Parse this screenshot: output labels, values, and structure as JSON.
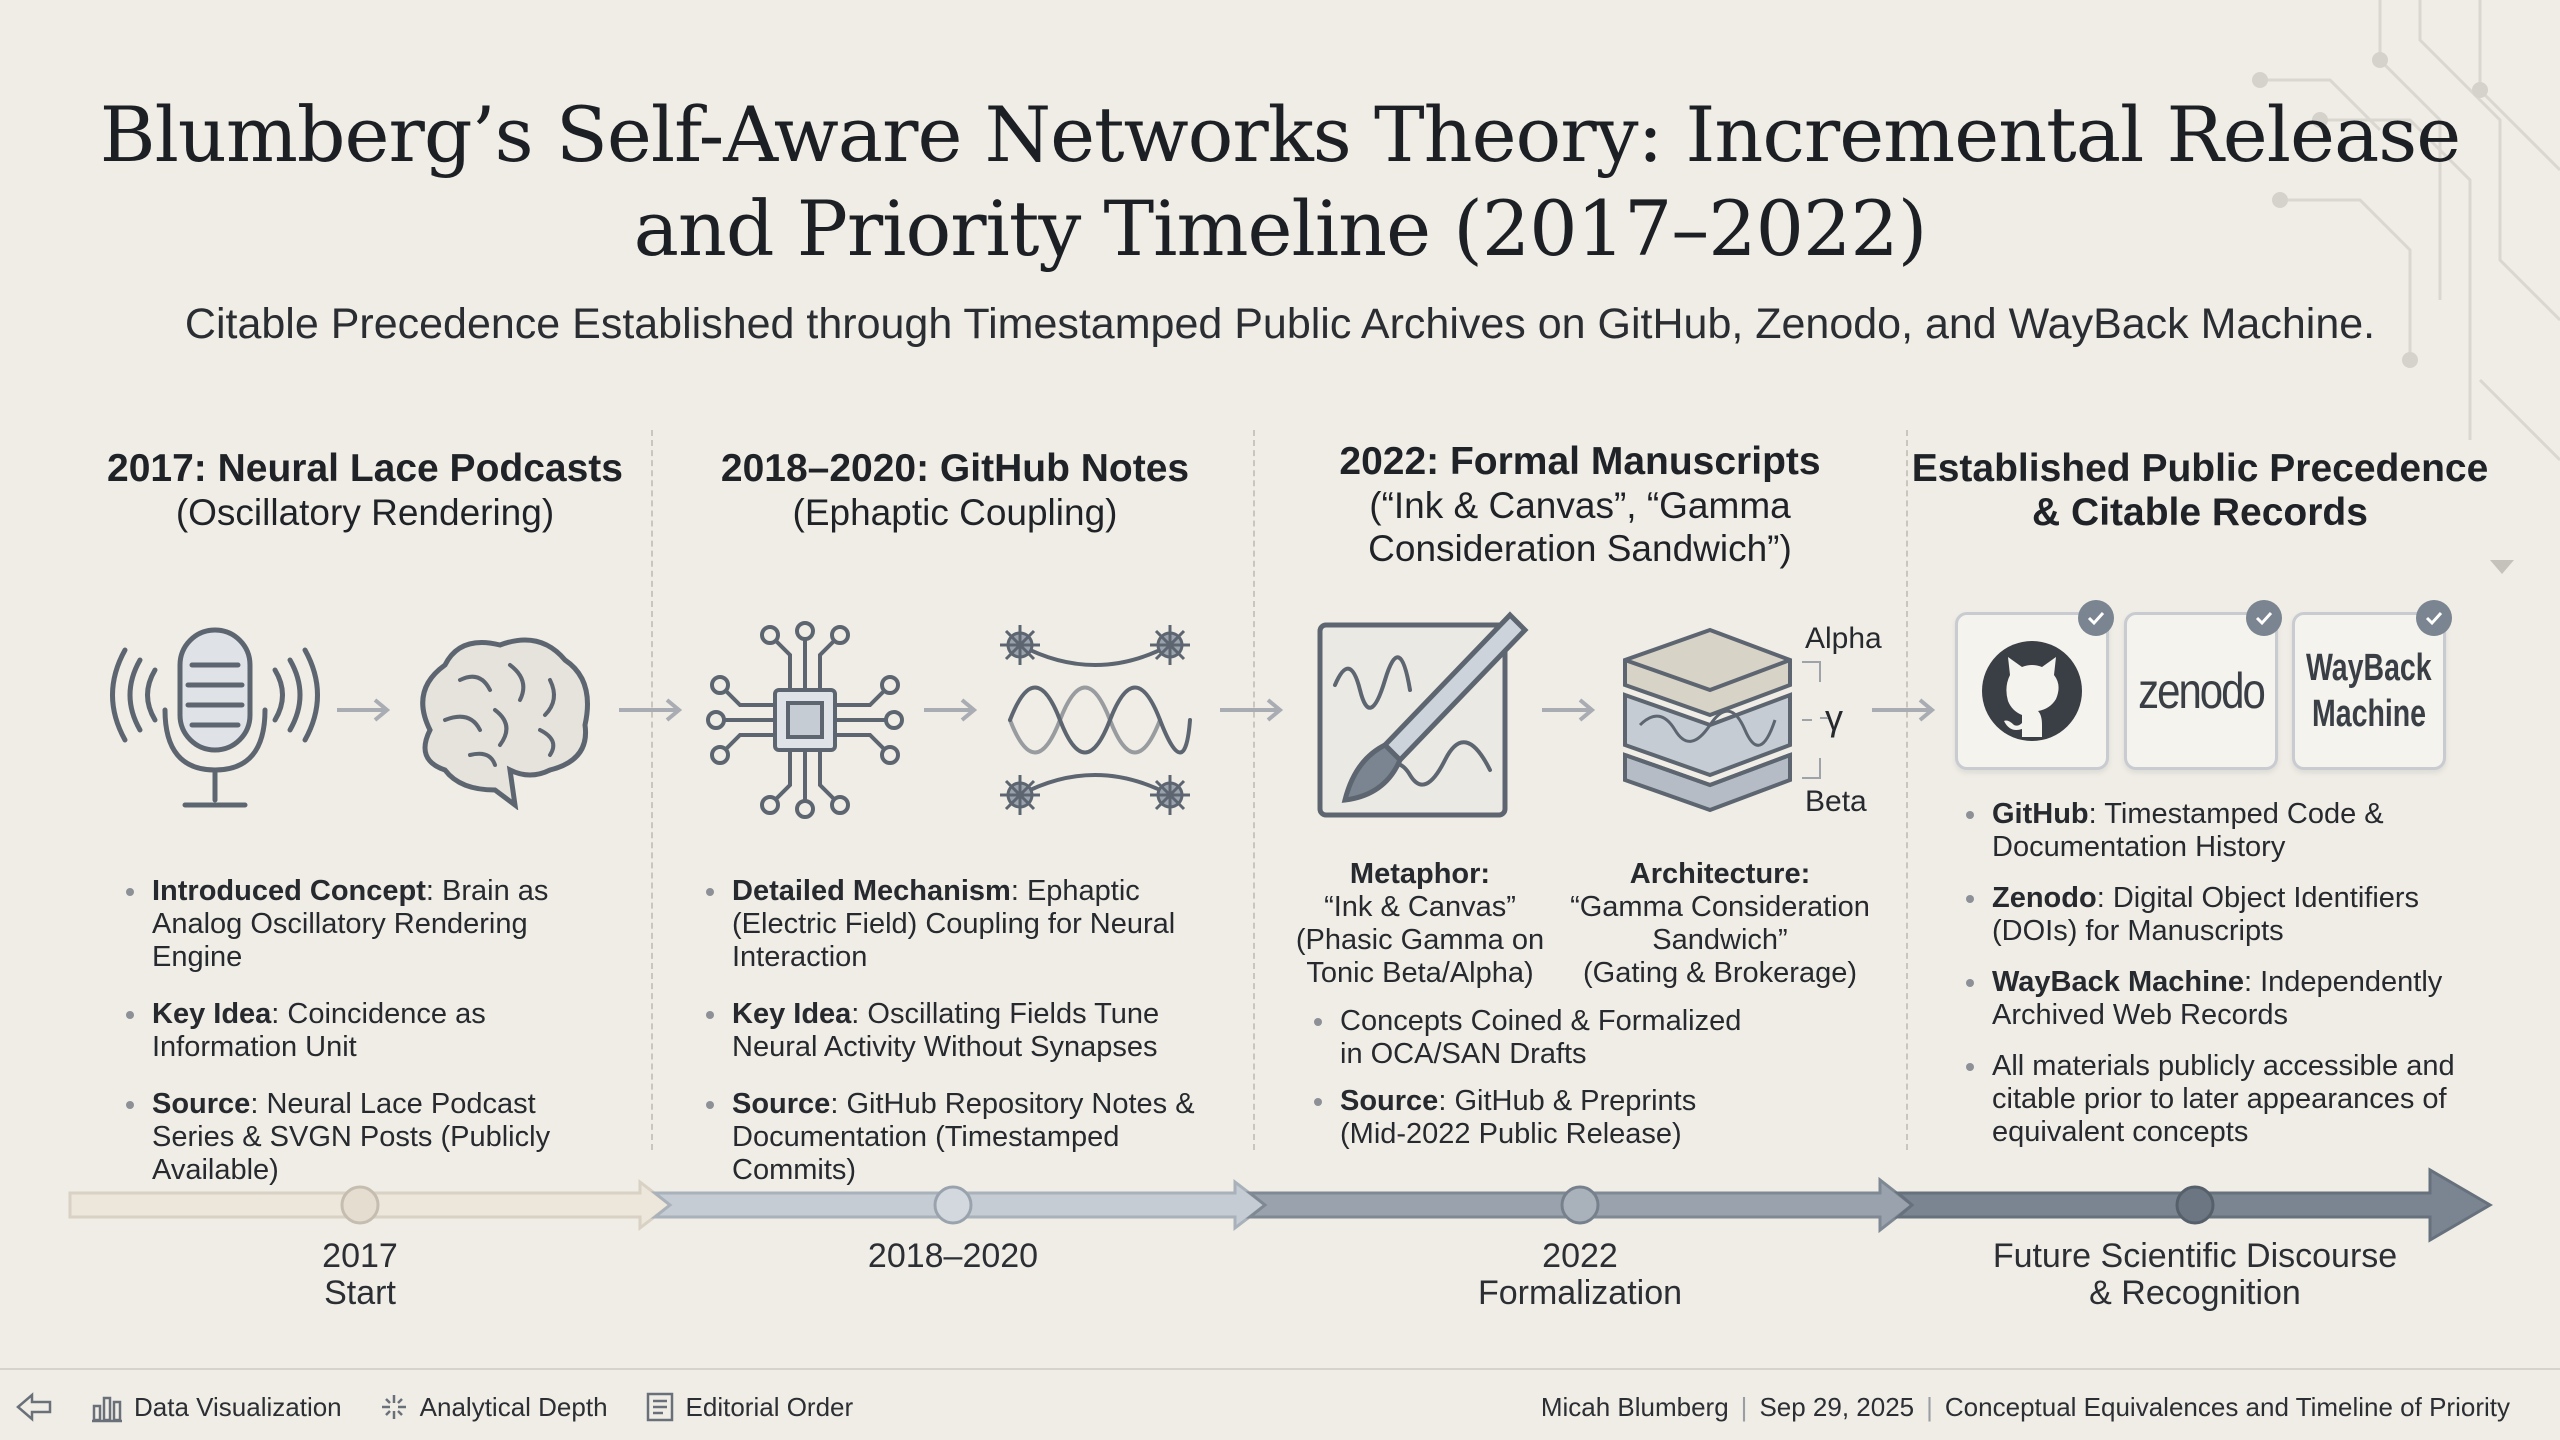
{
  "header": {
    "title_line1": "Blumberg’s Self-Aware Networks Theory: Incremental Release",
    "title_line2": "and Priority Timeline (2017–2022)",
    "subtitle": "Citable Precedence Established through Timestamped Public Archives on GitHub, Zenodo, and WayBack Machine."
  },
  "columns": [
    {
      "heading": "2017: Neural Lace Podcasts",
      "subheading": "(Oscillatory Rendering)",
      "icons": [
        "microphone-icon",
        "brain-icon"
      ],
      "bullets": [
        {
          "bold": "Introduced Concept",
          "text": ": Brain as Analog Oscillatory Rendering Engine"
        },
        {
          "bold": "Key Idea",
          "text": ": Coincidence as Information Unit"
        },
        {
          "bold": "Source",
          "text": ": Neural Lace Podcast Series & SVGN Posts (Publicly Available)"
        }
      ]
    },
    {
      "heading": "2018–2020: GitHub Notes",
      "subheading": "(Ephaptic Coupling)",
      "icons": [
        "circuit-chip-icon",
        "oscillating-neurons-icon"
      ],
      "bullets": [
        {
          "bold": "Detailed Mechanism",
          "text": ": Ephaptic (Electric Field) Coupling for Neural Interaction"
        },
        {
          "bold": "Key Idea",
          "text": ": Oscillating Fields Tune Neural Activity Without Synapses"
        },
        {
          "bold": "Source",
          "text": ": GitHub Repository Notes & Documentation (Timestamped Commits)"
        }
      ]
    },
    {
      "heading": "2022: Formal Manuscripts",
      "subheading_line1": "(“Ink & Canvas”, “Gamma",
      "subheading_line2": "Consideration Sandwich”)",
      "icons": [
        "canvas-brush-icon",
        "layered-sandwich-icon"
      ],
      "sandwich_labels": {
        "top": "Alpha",
        "middle": "γ",
        "bottom": "Beta"
      },
      "captions": [
        {
          "bold": "Metaphor:",
          "lines": [
            "“Ink & Canvas”",
            "(Phasic Gamma on",
            "Tonic Beta/Alpha)"
          ]
        },
        {
          "bold": "Architecture:",
          "lines": [
            "“Gamma Consideration",
            "Sandwich”",
            "(Gating & Brokerage)"
          ]
        }
      ],
      "bullets": [
        {
          "bold": "",
          "text": "Concepts Coined & Formalized in OCA/SAN Drafts"
        },
        {
          "bold": "Source",
          "text": ": GitHub & Preprints (Mid-2022 Public Release)"
        }
      ]
    },
    {
      "heading_line1": "Established Public Precedence",
      "heading_line2": "& Citable Records",
      "logos": [
        {
          "name": "github-logo",
          "text": ""
        },
        {
          "name": "zenodo-logo",
          "text": "zenodo"
        },
        {
          "name": "wayback-machine-logo",
          "text_line1": "WayBack",
          "text_line2": "Machine"
        }
      ],
      "bullets": [
        {
          "bold": "GitHub",
          "text": ": Timestamped Code & Documentation History"
        },
        {
          "bold": "Zenodo",
          "text": ": Digital Object Identifiers (DOIs) for Manuscripts"
        },
        {
          "bold": "WayBack Machine",
          "text": ": Independently Archived Web Records"
        },
        {
          "bold": "",
          "text": "All materials publicly accessible and citable prior to later appearances of equivalent concepts"
        }
      ]
    }
  ],
  "timeline": [
    {
      "line1": "2017",
      "line2": "Start"
    },
    {
      "line1": "2018–2020",
      "line2": ""
    },
    {
      "line1": "2022",
      "line2": "Formalization"
    },
    {
      "line1": "Future Scientific Discourse",
      "line2": "& Recognition"
    }
  ],
  "footer": {
    "nav": [
      {
        "icon": "back-arrow-icon",
        "label": ""
      },
      {
        "icon": "chart-icon",
        "label": "Data Visualization"
      },
      {
        "icon": "sparkle-icon",
        "label": "Analytical Depth"
      },
      {
        "icon": "list-icon",
        "label": "Editorial Order"
      }
    ],
    "author": "Micah Blumberg",
    "date": "Sep 29, 2025",
    "topic": "Conceptual Equivalences and Timeline of Priority"
  },
  "colors": {
    "background": "#efede6",
    "timeline_light": "#e3ddd2",
    "timeline_mid": "#aab1ba",
    "timeline_dark": "#717c89",
    "icon_stroke": "#5d6670"
  }
}
